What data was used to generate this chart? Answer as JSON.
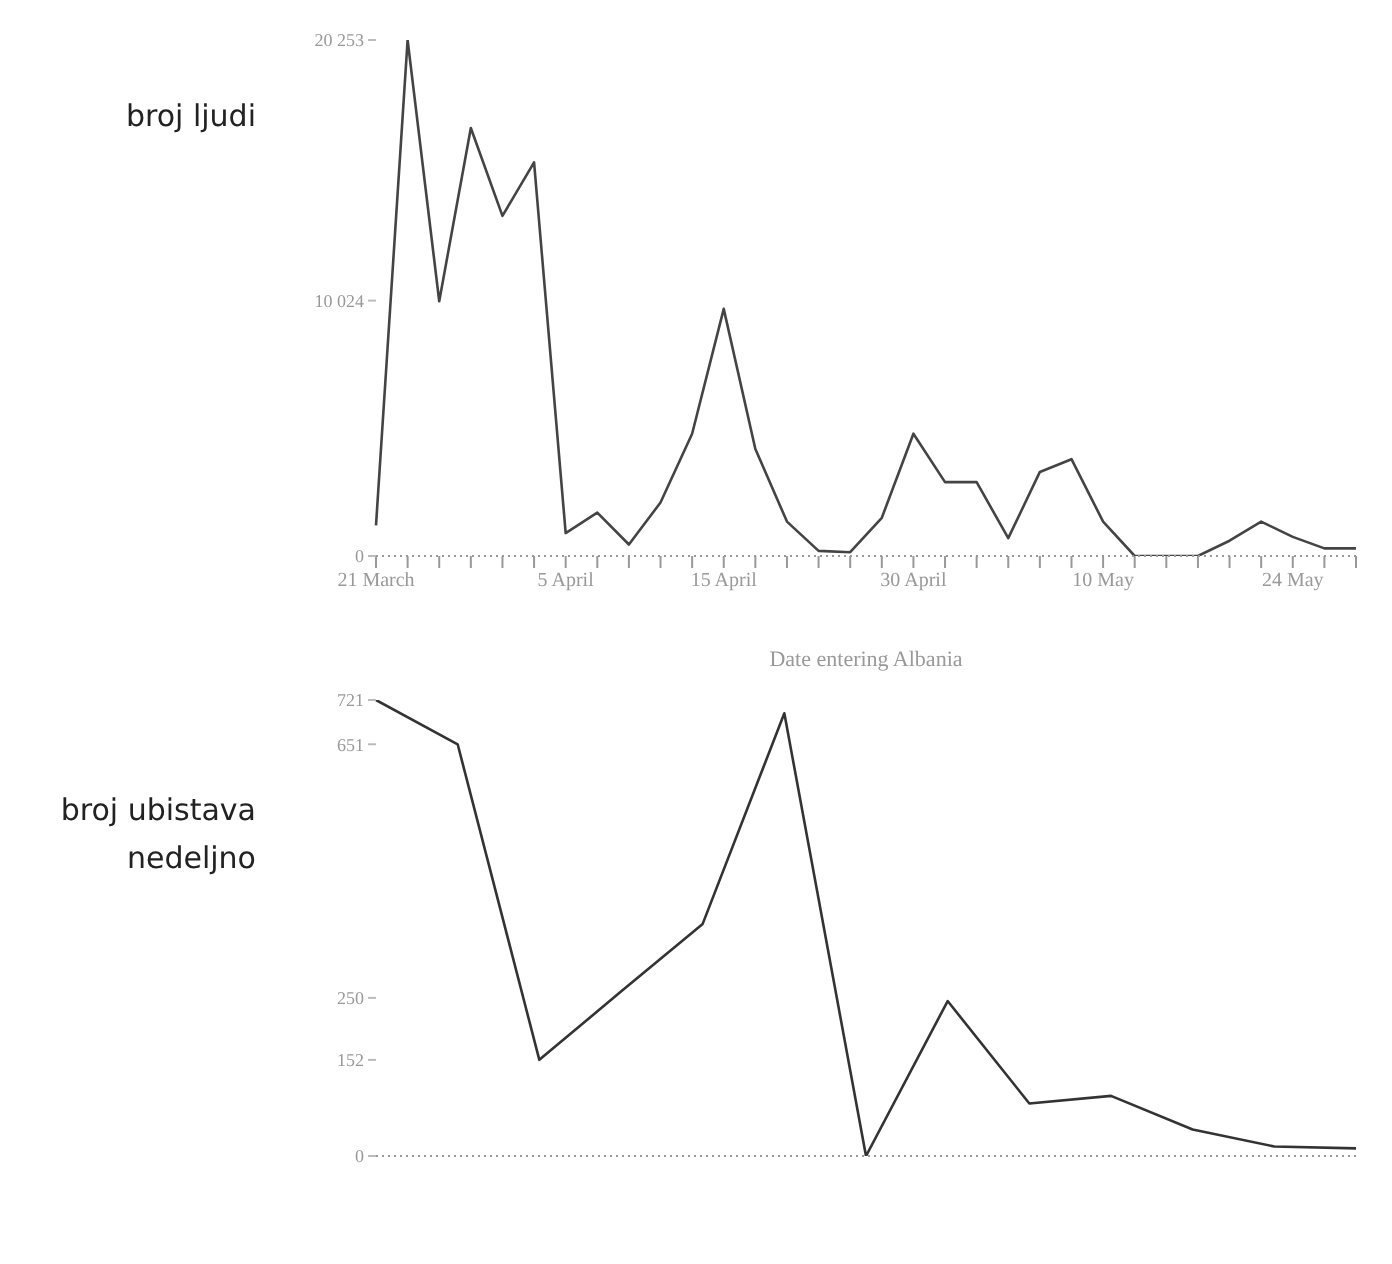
{
  "chart_data": [
    {
      "type": "line",
      "xlabel": "Date entering Albania",
      "ylabel": "broj ljudi",
      "categories": [
        "21 March",
        null,
        null,
        null,
        null,
        null,
        "5 April",
        null,
        null,
        null,
        null,
        "15 April",
        null,
        null,
        null,
        null,
        null,
        "30 April",
        null,
        null,
        null,
        null,
        null,
        "10 May",
        null,
        null,
        null,
        null,
        null,
        "24 May",
        null,
        null
      ],
      "series": [
        {
          "color": "#444444",
          "values": [
            1200,
            20250,
            10000,
            16800,
            13350,
            15450,
            900,
            1700,
            450,
            2100,
            4800,
            9700,
            4200,
            1350,
            200,
            150,
            1500,
            4800,
            2900,
            2900,
            700,
            3300,
            3800,
            1350,
            0,
            0,
            0,
            600,
            1350,
            750,
            300,
            300
          ]
        }
      ],
      "ylim": [
        0,
        20253
      ],
      "yticks": [
        0,
        {
          "value": 10024,
          "label": "10 024"
        },
        {
          "value": 20253,
          "label": "20 253"
        }
      ],
      "tick_labels": "y"
    },
    {
      "type": "line",
      "ylabel": "broj ubistava nedeljno",
      "categories": [
        null,
        null,
        null,
        null,
        null,
        null,
        null,
        null,
        null,
        null,
        null,
        null,
        null
      ],
      "series": [
        {
          "color": "#333333",
          "values": [
            721,
            651,
            152,
            260,
            367,
            700,
            0,
            245,
            83,
            95,
            42,
            15,
            12
          ]
        }
      ],
      "ylim": [
        0,
        721
      ],
      "yticks": [
        0,
        152,
        250,
        651,
        721
      ],
      "tick_labels": "y"
    }
  ]
}
